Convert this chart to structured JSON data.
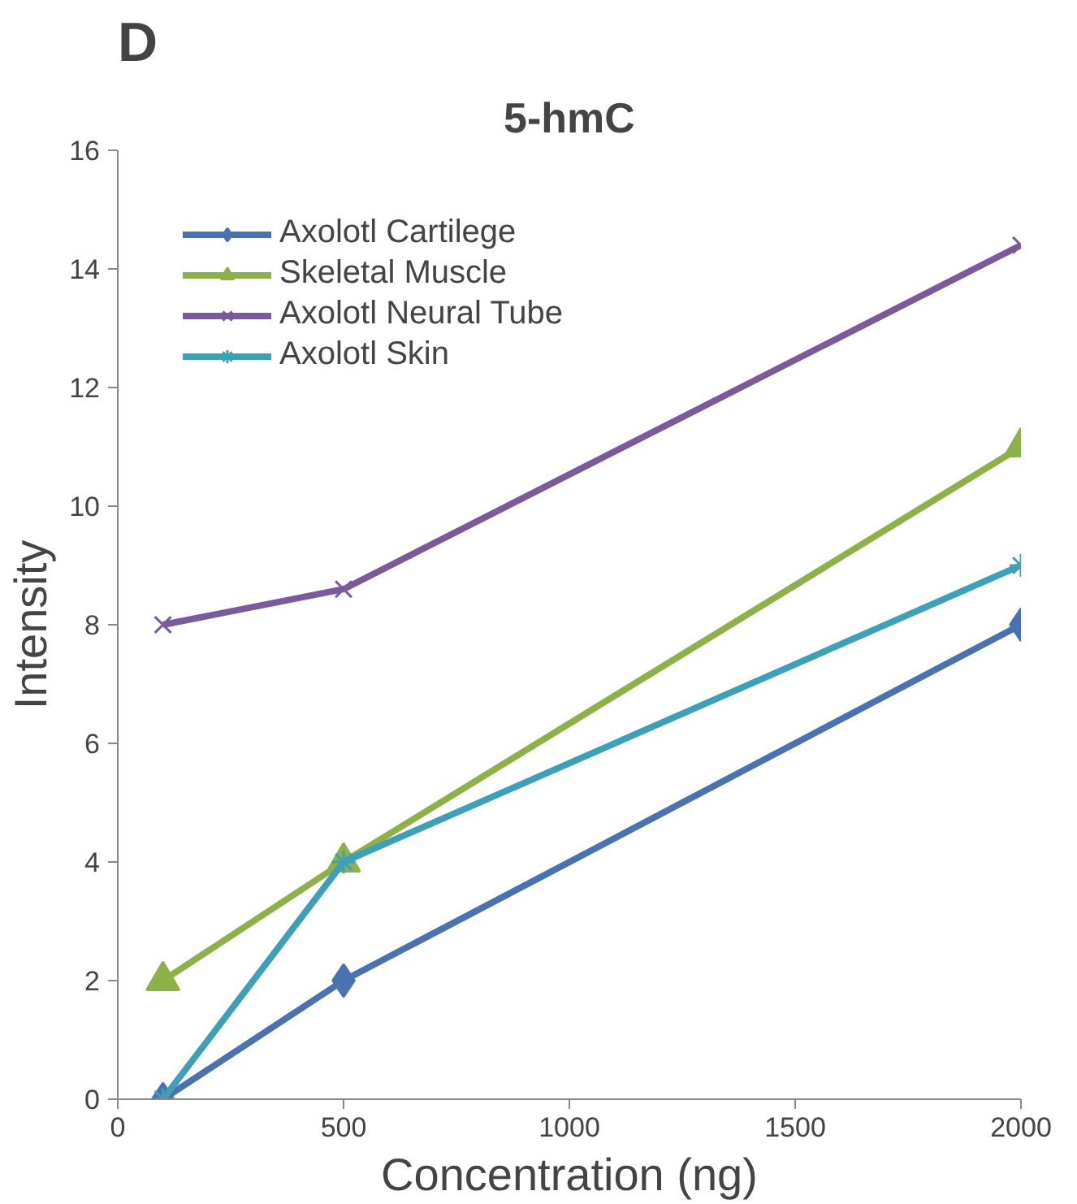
{
  "chart_data": {
    "type": "line",
    "title": "5-hmC",
    "xlabel": "Concentration (ng)",
    "ylabel": "Intensity",
    "annotations": [
      "D"
    ],
    "x": [
      100,
      500,
      2000
    ],
    "series": [
      {
        "name": "Axolotl Cartilege",
        "color": "#4a72b0",
        "marker": "diamond",
        "values": [
          0,
          2,
          8
        ]
      },
      {
        "name": "Skeletal Muscle",
        "color": "#8db048",
        "marker": "triangle",
        "values": [
          2,
          4,
          11
        ]
      },
      {
        "name": "Axolotl Neural Tube",
        "color": "#7a5a9a",
        "marker": "x",
        "values": [
          8,
          8.6,
          14.4
        ]
      },
      {
        "name": "Axolotl Skin",
        "color": "#3ea0b8",
        "marker": "cross",
        "values": [
          0,
          4,
          9
        ]
      }
    ],
    "xlim": [
      0,
      2000
    ],
    "xticks": [
      0,
      500,
      1000,
      1500,
      2000
    ],
    "ylim": [
      0,
      16
    ],
    "yticks": [
      0,
      2,
      4,
      6,
      8,
      10,
      12,
      14,
      16
    ],
    "grid": false,
    "legend": "top left",
    "line_style": "solid"
  }
}
